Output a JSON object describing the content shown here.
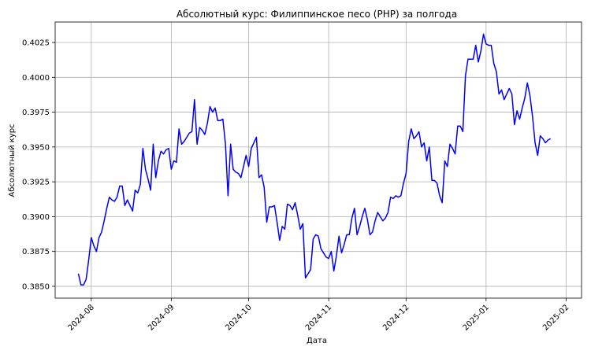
{
  "chart_data": {
    "type": "line",
    "title": "Абсолютный курс: Филиппинское песо (PHP) за полгода",
    "xlabel": "Дата",
    "ylabel": "Абсолютный курс",
    "color": "#0000ff",
    "y_axis_color": "#0000ff",
    "grid": true,
    "x": [
      -5,
      -4,
      -3,
      -2,
      -1,
      0,
      1,
      2,
      3,
      4,
      5,
      6,
      7,
      8,
      9,
      10,
      11,
      12,
      13,
      14,
      15,
      16,
      17,
      18,
      19,
      20,
      21,
      22,
      23,
      24,
      25,
      26,
      27,
      28,
      29,
      30,
      31,
      32,
      33,
      34,
      35,
      36,
      37,
      38,
      39,
      40,
      41,
      42,
      43,
      44,
      45,
      46,
      47,
      48,
      49,
      50,
      51,
      52,
      53,
      54,
      55,
      56,
      57,
      58,
      59,
      60,
      61,
      62,
      63,
      64,
      65,
      66,
      67,
      68,
      69,
      70,
      71,
      72,
      73,
      74,
      75,
      76,
      77,
      78,
      79,
      80,
      81,
      82,
      83,
      84,
      85,
      86,
      87,
      88,
      89,
      90,
      91,
      92,
      93,
      94,
      95,
      96,
      97,
      98,
      99,
      100,
      101,
      102,
      103,
      104,
      105,
      106,
      107,
      108,
      109,
      110,
      111,
      112,
      113,
      114,
      115,
      116,
      117,
      118,
      119,
      120,
      121,
      122,
      123,
      124,
      125,
      126,
      127,
      128,
      129,
      130,
      131,
      132,
      133,
      134,
      135,
      136,
      137,
      138,
      139,
      140,
      141,
      142,
      143,
      144,
      145,
      146,
      147,
      148,
      149,
      150,
      151,
      152,
      153,
      154,
      155,
      156,
      157,
      158,
      159,
      160,
      161,
      162,
      163,
      164,
      165,
      166,
      167,
      168,
      169,
      170,
      171,
      172,
      173,
      174,
      175,
      176,
      177,
      178
    ],
    "values": [
      0.3859,
      0.3851,
      0.3851,
      0.3855,
      0.3869,
      0.3885,
      0.3879,
      0.3875,
      0.3885,
      0.3889,
      0.3897,
      0.3906,
      0.3914,
      0.3912,
      0.3911,
      0.3914,
      0.3922,
      0.3922,
      0.3908,
      0.3912,
      0.3908,
      0.3904,
      0.3919,
      0.3917,
      0.3923,
      0.3949,
      0.3934,
      0.3927,
      0.3919,
      0.3952,
      0.3928,
      0.394,
      0.3947,
      0.3945,
      0.3948,
      0.3949,
      0.3934,
      0.394,
      0.3939,
      0.3963,
      0.3952,
      0.3954,
      0.3957,
      0.396,
      0.3961,
      0.3984,
      0.3952,
      0.3964,
      0.3962,
      0.3959,
      0.3967,
      0.3979,
      0.3975,
      0.3978,
      0.3969,
      0.3969,
      0.397,
      0.3952,
      0.3915,
      0.3952,
      0.3934,
      0.3932,
      0.3931,
      0.3928,
      0.3936,
      0.3944,
      0.3936,
      0.3949,
      0.3953,
      0.3957,
      0.3928,
      0.393,
      0.3921,
      0.3896,
      0.3907,
      0.3907,
      0.3908,
      0.3896,
      0.3883,
      0.3893,
      0.3891,
      0.3909,
      0.3908,
      0.3905,
      0.391,
      0.3901,
      0.3891,
      0.3895,
      0.3856,
      0.3859,
      0.3862,
      0.3884,
      0.3887,
      0.3886,
      0.3877,
      0.3874,
      0.3871,
      0.387,
      0.3875,
      0.3861,
      0.3872,
      0.3886,
      0.3874,
      0.388,
      0.3887,
      0.3887,
      0.3899,
      0.3906,
      0.3887,
      0.3893,
      0.39,
      0.3906,
      0.3898,
      0.3887,
      0.3889,
      0.3897,
      0.3903,
      0.39,
      0.3897,
      0.3899,
      0.3903,
      0.3914,
      0.3913,
      0.3915,
      0.3914,
      0.3915,
      0.3924,
      0.3931,
      0.3954,
      0.3963,
      0.3956,
      0.3958,
      0.3961,
      0.395,
      0.3953,
      0.394,
      0.395,
      0.3926,
      0.3926,
      0.3924,
      0.3915,
      0.391,
      0.394,
      0.3936,
      0.3952,
      0.3949,
      0.3945,
      0.3965,
      0.3965,
      0.3961,
      0.4001,
      0.4013,
      0.4013,
      0.4013,
      0.4023,
      0.4011,
      0.4019,
      0.4031,
      0.4024,
      0.4023,
      0.4023,
      0.401,
      0.4004,
      0.3988,
      0.3991,
      0.3984,
      0.3988,
      0.3992,
      0.3988,
      0.3966,
      0.3976,
      0.397,
      0.3978,
      0.3985,
      0.3996,
      0.3987,
      0.3972,
      0.3953,
      0.3944,
      0.3958,
      0.3956,
      0.3953,
      0.3955,
      0.3956
    ],
    "xlim": [
      -14,
      190
    ],
    "xticks": [
      {
        "value": 0,
        "label": "2024-08"
      },
      {
        "value": 31,
        "label": "2024-09"
      },
      {
        "value": 61,
        "label": "2024-10"
      },
      {
        "value": 92,
        "label": "2024-11"
      },
      {
        "value": 122,
        "label": "2024-12"
      },
      {
        "value": 153,
        "label": "2025-01"
      },
      {
        "value": 184,
        "label": "2025-02"
      }
    ],
    "ylim": [
      0.38415,
      0.40397
    ],
    "yticks": [
      {
        "value": 0.385,
        "label": "0.3850"
      },
      0.3875,
      {
        "value": 0.39,
        "label": "0.3900"
      },
      0.3925,
      {
        "value": 0.395,
        "label": "0.3950"
      },
      0.3975,
      {
        "value": 0.4,
        "label": "0.4000"
      },
      0.4025
    ]
  }
}
